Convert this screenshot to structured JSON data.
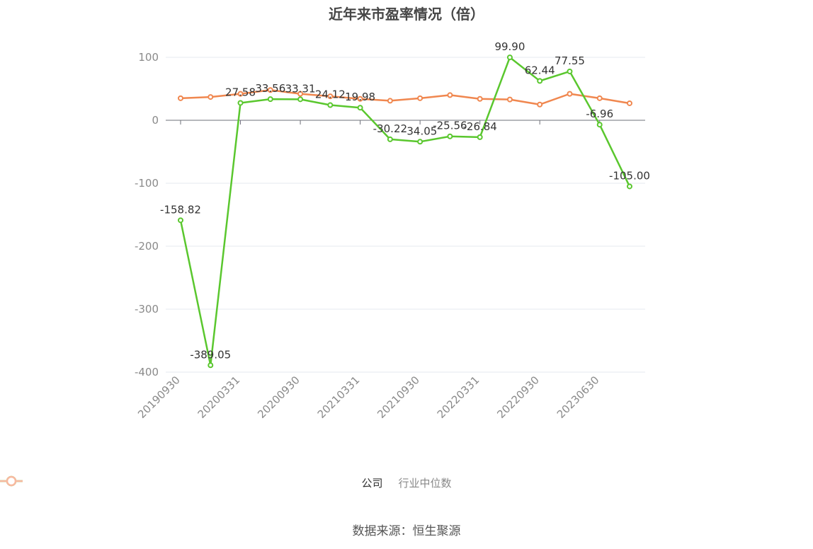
{
  "chart_data": {
    "type": "line",
    "title": "近年来市盈率情况（倍）",
    "x_ticks": [
      "20190930",
      "20200331",
      "20200930",
      "20210331",
      "20210930",
      "20220331",
      "20220930",
      "20230630"
    ],
    "y_ticks": [
      "100",
      "0",
      "-100",
      "-200",
      "-300",
      "-400"
    ],
    "ylim": [
      -400,
      100
    ],
    "grid": true,
    "legend_position": "bottom",
    "series": [
      {
        "name": "公司",
        "color": "#5ac72e",
        "values": [
          -158.82,
          -389.05,
          27.58,
          33.56,
          33.31,
          24.12,
          19.98,
          -30.22,
          -34.05,
          -25.56,
          -26.84,
          99.9,
          62.44,
          77.55,
          -6.96,
          -105.0
        ],
        "labels": [
          "-158.82",
          "-389.05",
          "27.58",
          "33.56",
          "33.31",
          "24.12",
          "19.98",
          "-30.22",
          "-34.05",
          "-25.56",
          "-26.84",
          "99.90",
          "62.44",
          "77.55",
          "-6.96",
          "-105.00"
        ]
      },
      {
        "name": "行业中位数",
        "color": "#f0874f",
        "values": [
          35,
          37,
          42,
          48,
          42,
          38,
          34,
          31,
          35,
          40,
          34,
          33,
          25,
          42,
          35,
          27
        ]
      }
    ]
  },
  "legend": [
    {
      "label": "公司",
      "color": "#5ac72e"
    },
    {
      "label": "行业中位数",
      "color": "#f8b9a0"
    }
  ],
  "source": "数据来源：恒生聚源"
}
